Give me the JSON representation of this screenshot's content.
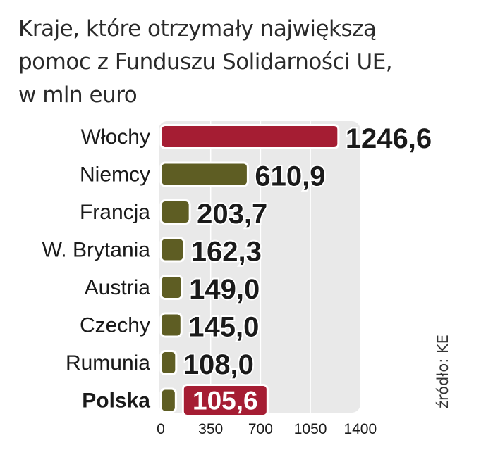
{
  "chart_data": {
    "type": "bar",
    "orientation": "horizontal",
    "title": [
      "Kraje, które otrzymały największą",
      "pomoc z Funduszu Solidarności UE,",
      "w mln euro"
    ],
    "categories": [
      "Włochy",
      "Niemcy",
      "Francja",
      "W. Brytania",
      "Austria",
      "Czechy",
      "Rumunia",
      "Polska"
    ],
    "values": [
      1246.6,
      610.9,
      203.7,
      162.3,
      149.0,
      145.0,
      108.0,
      105.6
    ],
    "value_labels": [
      "1246,6",
      "610,9",
      "203,7",
      "162,3",
      "149,0",
      "145,0",
      "108,0",
      "105,6"
    ],
    "highlight": [
      "Włochy",
      "Polska"
    ],
    "xlim": [
      0,
      1400
    ],
    "xticks": [
      0,
      350,
      700,
      1050,
      1400
    ],
    "source": "źródło: KE",
    "colors": {
      "default_bar": "#5e5d23",
      "highlight_bar": "#a51d33",
      "plot_bg": "#e9e9e9",
      "label_box": "#a51d33",
      "label_box_text": "#ffffff"
    }
  }
}
